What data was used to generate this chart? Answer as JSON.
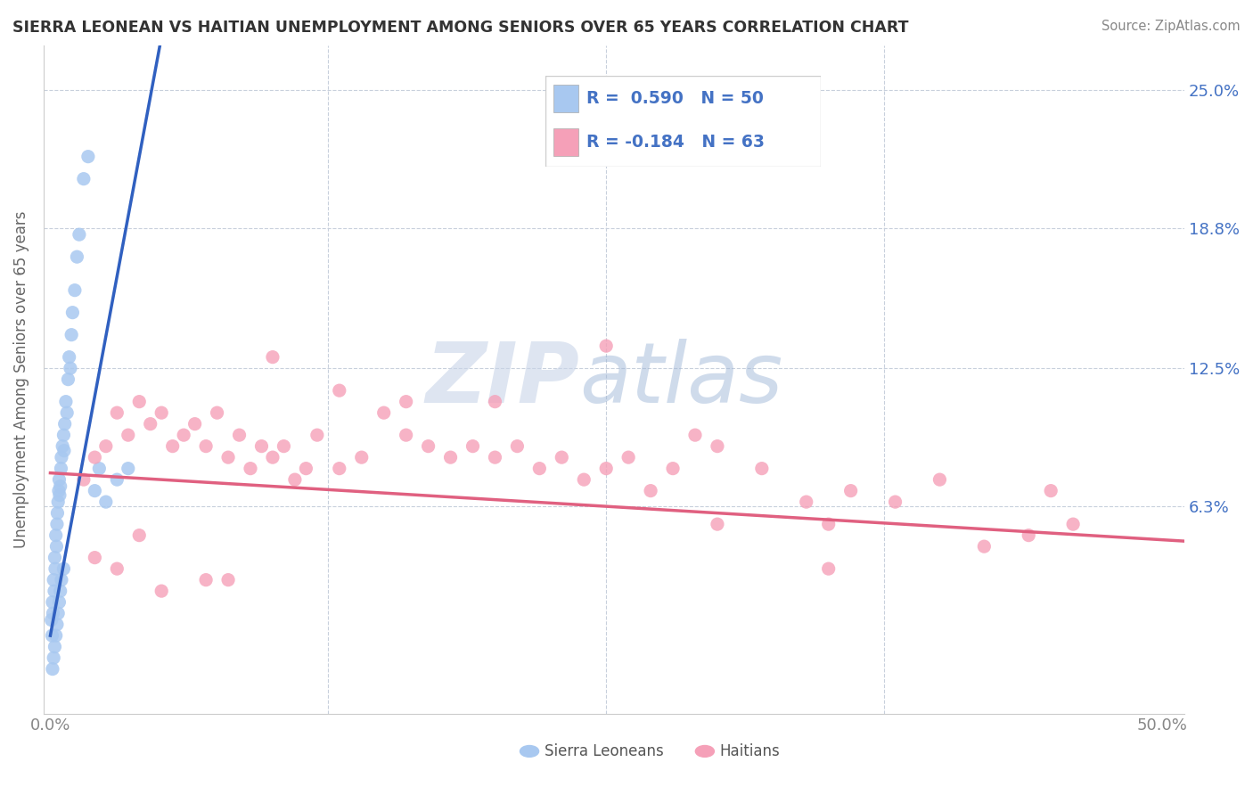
{
  "title": "SIERRA LEONEAN VS HAITIAN UNEMPLOYMENT AMONG SENIORS OVER 65 YEARS CORRELATION CHART",
  "source": "Source: ZipAtlas.com",
  "ylabel": "Unemployment Among Seniors over 65 years",
  "xlim_left": -0.3,
  "xlim_right": 51,
  "ylim_bottom": -3,
  "ylim_top": 27,
  "right_yticks": [
    0,
    6.3,
    12.5,
    18.8,
    25.0
  ],
  "right_yticklabels": [
    "",
    "6.3%",
    "12.5%",
    "18.8%",
    "25.0%"
  ],
  "xtick_labels_show": [
    "0.0%",
    "50.0%"
  ],
  "xtick_show_pos": [
    0,
    50
  ],
  "legend_line1": "R =  0.590   N = 50",
  "legend_line2": "R = -0.184   N = 63",
  "sierra_color": "#a8c8f0",
  "haitian_color": "#f5a0b8",
  "sierra_line_color": "#3060c0",
  "haitian_line_color": "#e06080",
  "legend_text_color": "#4472c4",
  "tick_color": "#888888",
  "grid_color": "#c8d0dc",
  "title_color": "#333333",
  "source_color": "#888888",
  "watermark_zip_color": "#c8d4e8",
  "watermark_atlas_color": "#b0c0e0",
  "sl_line_x0": 0.0,
  "sl_line_y0": 0.5,
  "sl_line_x1": 4.0,
  "sl_line_y1": 22.0,
  "ht_line_x0": 0.0,
  "ht_line_y0": 7.8,
  "ht_line_x1": 50.0,
  "ht_line_y1": 4.8,
  "sl_N": 50,
  "ht_N": 63,
  "sierra_x": [
    0.05,
    0.08,
    0.1,
    0.12,
    0.15,
    0.18,
    0.2,
    0.22,
    0.25,
    0.28,
    0.3,
    0.32,
    0.35,
    0.38,
    0.4,
    0.42,
    0.45,
    0.48,
    0.5,
    0.55,
    0.6,
    0.62,
    0.65,
    0.7,
    0.75,
    0.8,
    0.85,
    0.9,
    0.95,
    1.0,
    1.1,
    1.2,
    1.3,
    1.5,
    1.7,
    2.0,
    2.2,
    2.5,
    3.0,
    3.5,
    0.1,
    0.15,
    0.2,
    0.25,
    0.3,
    0.35,
    0.4,
    0.45,
    0.5,
    0.6
  ],
  "sierra_y": [
    1.2,
    0.5,
    2.0,
    1.5,
    3.0,
    2.5,
    4.0,
    3.5,
    5.0,
    4.5,
    5.5,
    6.0,
    6.5,
    7.0,
    7.5,
    6.8,
    7.2,
    8.0,
    8.5,
    9.0,
    9.5,
    8.8,
    10.0,
    11.0,
    10.5,
    12.0,
    13.0,
    12.5,
    14.0,
    15.0,
    16.0,
    17.5,
    18.5,
    21.0,
    22.0,
    7.0,
    8.0,
    6.5,
    7.5,
    8.0,
    -1.0,
    -0.5,
    0.0,
    0.5,
    1.0,
    1.5,
    2.0,
    2.5,
    3.0,
    3.5
  ],
  "haitian_x": [
    1.5,
    2.0,
    2.5,
    3.0,
    3.5,
    4.0,
    4.5,
    5.0,
    5.5,
    6.0,
    6.5,
    7.0,
    7.5,
    8.0,
    8.5,
    9.0,
    9.5,
    10.0,
    10.5,
    11.0,
    11.5,
    12.0,
    13.0,
    14.0,
    15.0,
    16.0,
    17.0,
    18.0,
    19.0,
    20.0,
    21.0,
    22.0,
    23.0,
    24.0,
    25.0,
    26.0,
    27.0,
    28.0,
    29.0,
    30.0,
    32.0,
    34.0,
    35.0,
    36.0,
    38.0,
    40.0,
    42.0,
    44.0,
    45.0,
    46.0,
    3.0,
    5.0,
    7.0,
    10.0,
    13.0,
    16.0,
    20.0,
    25.0,
    30.0,
    35.0,
    2.0,
    4.0,
    8.0
  ],
  "haitian_y": [
    7.5,
    8.5,
    9.0,
    10.5,
    9.5,
    11.0,
    10.0,
    10.5,
    9.0,
    9.5,
    10.0,
    9.0,
    10.5,
    8.5,
    9.5,
    8.0,
    9.0,
    8.5,
    9.0,
    7.5,
    8.0,
    9.5,
    8.0,
    8.5,
    10.5,
    9.5,
    9.0,
    8.5,
    9.0,
    8.5,
    9.0,
    8.0,
    8.5,
    7.5,
    8.0,
    8.5,
    7.0,
    8.0,
    9.5,
    9.0,
    8.0,
    6.5,
    5.5,
    7.0,
    6.5,
    7.5,
    4.5,
    5.0,
    7.0,
    5.5,
    3.5,
    2.5,
    3.0,
    13.0,
    11.5,
    11.0,
    11.0,
    13.5,
    5.5,
    3.5,
    4.0,
    5.0,
    3.0
  ]
}
